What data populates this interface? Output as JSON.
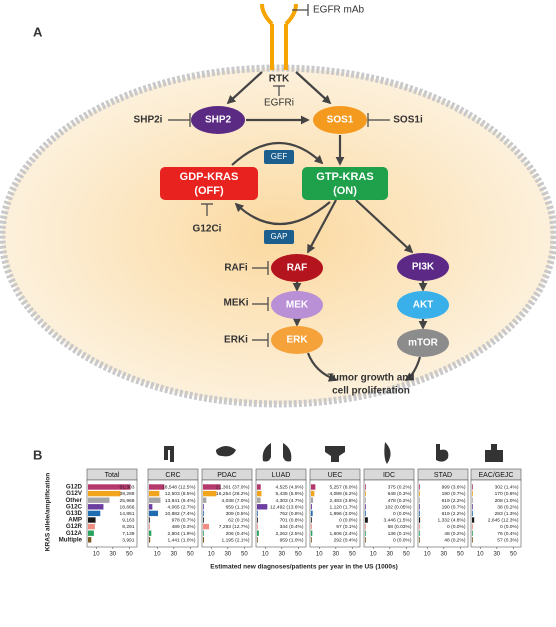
{
  "diagram": {
    "panel_label": "A",
    "antibody": "EGFR mAb",
    "receptor": "RTK",
    "receptor_inhibitor": "EGFRi",
    "nodes": [
      {
        "label": "SHP2",
        "inhibitor": "SHP2i"
      },
      {
        "label": "SOS1",
        "inhibitor": "SOS1i"
      },
      {
        "label": "GEF"
      },
      {
        "lines": [
          "GDP-KRAS",
          "(OFF)"
        ],
        "inhibitor": "G12Ci"
      },
      {
        "lines": [
          "GTP-KRAS",
          "(ON)"
        ]
      },
      {
        "label": "GAP"
      },
      {
        "label": "RAF",
        "inhibitor": "RAFi"
      },
      {
        "label": "PI3K"
      },
      {
        "label": "MEK",
        "inhibitor": "MEKi"
      },
      {
        "label": "AKT"
      },
      {
        "label": "ERK",
        "inhibitor": "ERKi"
      },
      {
        "label": "mTOR"
      }
    ],
    "outcome": [
      "Tumor growth and",
      "cell proliferation"
    ]
  },
  "chart_data": {
    "type": "bar",
    "orientation": "horizontal",
    "panel_label": "B",
    "y_label": "KRAS allele/amplification",
    "x_label": "Estimated new diagnoses/patients per year in the US (1000s)",
    "categories": [
      "G12D",
      "G12V",
      "Other",
      "G12C",
      "G13D",
      "AMP",
      "G12R",
      "G12A",
      "Multiple"
    ],
    "colors": [
      "#b5386d",
      "#f2a51c",
      "#a6a6a6",
      "#6b3fa0",
      "#1f6cb0",
      "#1a1a1a",
      "#f08d80",
      "#2ca25f",
      "#7b5a22"
    ],
    "xlim": [
      0,
      58
    ],
    "xticks": [
      10,
      30,
      50
    ],
    "series": [
      {
        "name": "Total",
        "values": [
          51.303,
          39.289,
          25.968,
          18.666,
          14.851,
          9.163,
          8.291,
          7.139,
          3.991
        ],
        "value_labels": [
          "51,303",
          "39,289",
          "25,968",
          "18,666",
          "14,851",
          "9,163",
          "8,291",
          "7,139",
          "3,991"
        ]
      },
      {
        "name": "CRC",
        "values": [
          18.548,
          12.503,
          13.841,
          4.065,
          10.882,
          0.978,
          0.489,
          2.804,
          1.441
        ],
        "value_labels": [
          "18,548 (12.5%)",
          "12,503 (8.5%)",
          "13,841 (9.4%)",
          "4,065 (2.7%)",
          "10,882 (7.4%)",
          "978 (0.7%)",
          "489 (0.3%)",
          "2,804 (1.9%)",
          "1,441 (1.0%)"
        ]
      },
      {
        "name": "PDAC",
        "values": [
          21.301,
          16.254,
          4.038,
          0.659,
          0.309,
          0.062,
          7.293,
          0.206,
          1.195
        ],
        "value_labels": [
          "21,301 (37.0%)",
          "16,254 (28.2%)",
          "4,038 (7.0%)",
          "659 (1.1%)",
          "309 (0.5%)",
          "62 (0.1%)",
          "7,293 (12.7%)",
          "206 (0.4%)",
          "1,195 (2.1%)"
        ]
      },
      {
        "name": "LUAD",
        "values": [
          4.525,
          5.435,
          4.303,
          12.492,
          0.762,
          0.701,
          0.344,
          2.262,
          0.959
        ],
        "value_labels": [
          "4,525 (4.9%)",
          "5,435 (5.9%)",
          "4,303 (4.7%)",
          "12,492 (13.6%)",
          "762 (0.8%)",
          "701 (0.8%)",
          "344 (0.4%)",
          "2,262 (2.5%)",
          "959 (1.0%)"
        ]
      },
      {
        "name": "UEC",
        "values": [
          5.257,
          4.089,
          2.483,
          1.12,
          1.996,
          0,
          0.097,
          1.606,
          0.292
        ],
        "value_labels": [
          "5,257 (8.0%)",
          "4,089 (6.2%)",
          "2,483 (3.8%)",
          "1,120 (1.7%)",
          "1,996 (3.0%)",
          "0 (0.0%)",
          "97 (0.1%)",
          "1,606 (2.4%)",
          "292 (0.4%)"
        ]
      },
      {
        "name": "IDC",
        "values": [
          0.375,
          0.648,
          0.478,
          0.102,
          0,
          3.446,
          0.068,
          0.136,
          0
        ],
        "value_labels": [
          "375 (0.2%)",
          "648 (0.3%)",
          "478 (0.2%)",
          "102 (0.05%)",
          "0 (0.0%)",
          "3,446 (1.5%)",
          "68 (0.03%)",
          "136 (0.1%)",
          "0 (0.0%)"
        ]
      },
      {
        "name": "STAD",
        "values": [
          0.999,
          0.19,
          0.619,
          0.19,
          0.619,
          1.332,
          0,
          0.048,
          0.048
        ],
        "value_labels": [
          "999 (3.6%)",
          "190 (0.7%)",
          "619 (2.2%)",
          "190 (0.7%)",
          "619 (2.2%)",
          "1,332 (4.8%)",
          "0 (0.0%)",
          "48 (0.2%)",
          "48 (0.2%)"
        ]
      },
      {
        "name": "EAC/GEJC",
        "values": [
          0.302,
          0.17,
          0.208,
          0.038,
          0.283,
          2.645,
          0,
          0.076,
          0.057
        ],
        "value_labels": [
          "302 (1.4%)",
          "170 (0.8%)",
          "208 (1.0%)",
          "38 (0.2%)",
          "283 (1.3%)",
          "2,645 (12.3%)",
          "0 (0.0%)",
          "76 (0.4%)",
          "57 (0.3%)"
        ]
      }
    ]
  }
}
